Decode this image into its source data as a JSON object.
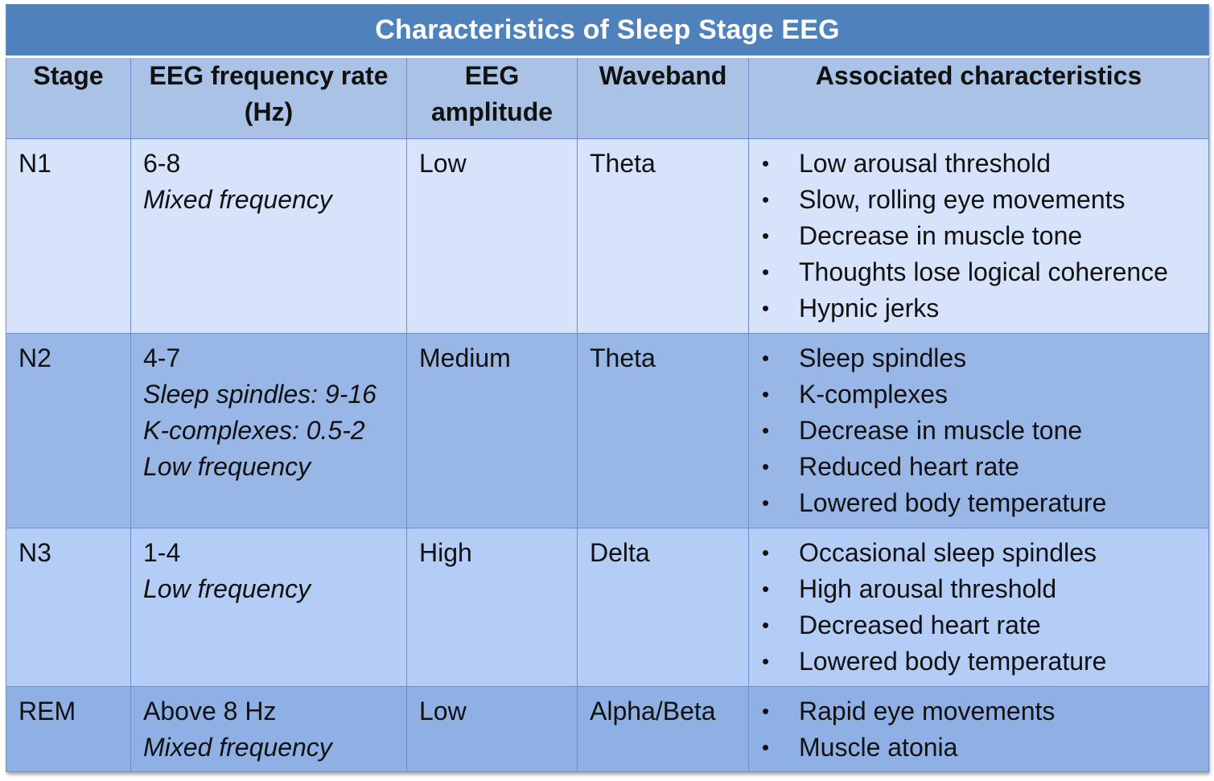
{
  "title": "Characteristics of Sleep Stage EEG",
  "headers": {
    "stage": "Stage",
    "freq_line1": "EEG frequency rate",
    "freq_line2": "(Hz)",
    "amp_line1": "EEG",
    "amp_line2": "amplitude",
    "waveband": "Waveband",
    "associated": "Associated characteristics"
  },
  "rows": [
    {
      "stage": "N1",
      "freq": [
        "6-8",
        "Mixed frequency"
      ],
      "amplitude": "Low",
      "waveband": "Theta",
      "characteristics": [
        "Low arousal threshold",
        "Slow, rolling eye movements",
        "Decrease in muscle tone",
        "Thoughts lose logical coherence",
        "Hypnic jerks"
      ]
    },
    {
      "stage": "N2",
      "freq": [
        "4-7",
        "Sleep spindles: 9-16",
        "K-complexes: 0.5-2",
        "Low frequency"
      ],
      "amplitude": "Medium",
      "waveband": "Theta",
      "characteristics": [
        "Sleep spindles",
        "K-complexes",
        "Decrease in muscle tone",
        "Reduced heart rate",
        "Lowered body temperature"
      ]
    },
    {
      "stage": "N3",
      "freq": [
        "1-4",
        "Low frequency"
      ],
      "amplitude": "High",
      "waveband": "Delta",
      "characteristics": [
        "Occasional sleep spindles",
        "High arousal threshold",
        "Decreased heart rate",
        "Lowered body temperature"
      ]
    },
    {
      "stage": "REM",
      "freq": [
        "Above 8 Hz",
        "Mixed frequency"
      ],
      "amplitude": "Low",
      "waveband": "Alpha/Beta",
      "characteristics": [
        "Rapid eye movements",
        "Muscle atonia"
      ]
    }
  ],
  "bullet_glyph": "•",
  "colors": {
    "title_bg": "#4f81bd",
    "header_bg": "#a9c2e6",
    "row_n1": "#d6e3fb",
    "row_n2": "#98b7e6",
    "row_n3": "#b3cdf7",
    "row_rem": "#8fb0e5",
    "border": "#6b8fcb"
  }
}
